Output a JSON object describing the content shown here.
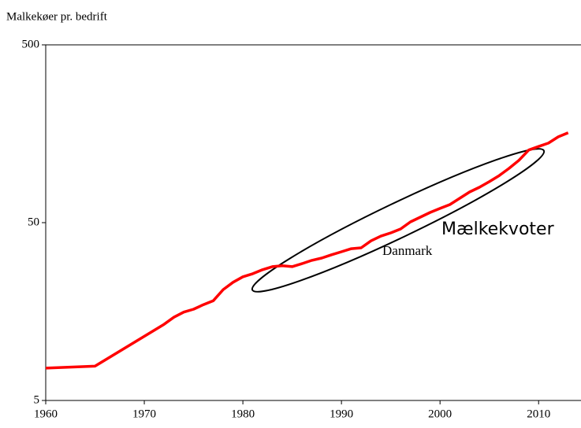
{
  "chart_data": {
    "type": "line",
    "title": "Malkekøer pr. bedrift",
    "x": [
      1960,
      1965,
      1972,
      1973,
      1974,
      1975,
      1976,
      1977,
      1978,
      1979,
      1980,
      1981,
      1982,
      1983,
      1984,
      1985,
      1986,
      1987,
      1988,
      1989,
      1990,
      1991,
      1992,
      1993,
      1994,
      1995,
      1996,
      1997,
      1998,
      1999,
      2000,
      2001,
      2002,
      2003,
      2004,
      2005,
      2006,
      2007,
      2008,
      2009,
      2010,
      2011,
      2012,
      2013
    ],
    "values": [
      7.6,
      7.8,
      13.4,
      14.7,
      15.7,
      16.3,
      17.3,
      18.2,
      21.0,
      23.1,
      24.8,
      25.8,
      27.2,
      28.3,
      28.6,
      28.3,
      29.4,
      30.7,
      31.6,
      33.0,
      34.3,
      35.7,
      36.1,
      39.5,
      42.0,
      43.8,
      46.1,
      50.5,
      53.7,
      57.1,
      60.1,
      63.2,
      68.6,
      74.4,
      79.1,
      85,
      92,
      101,
      112,
      128,
      134,
      140,
      152,
      160
    ],
    "color": "#ff0000",
    "xlim": [
      1960,
      2014.3
    ],
    "xticks": [
      1960,
      1970,
      1980,
      1990,
      2000,
      2010
    ],
    "ylim": [
      5,
      500
    ],
    "yticks": [
      5,
      50,
      500
    ],
    "log_y": true,
    "annotations": [
      "Mælkekvoter",
      "Danmark"
    ]
  }
}
